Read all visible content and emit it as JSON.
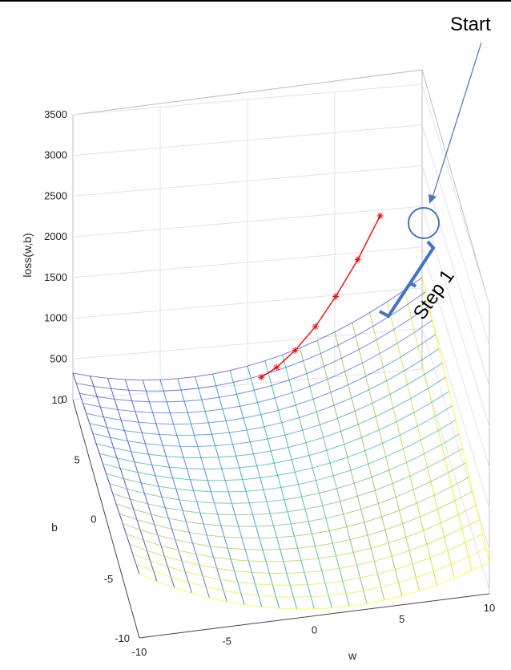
{
  "chart_data": {
    "type": "surface",
    "title": "",
    "xlabel": "w",
    "ylabel": "b",
    "zlabel": "loss(w,b)",
    "xlim": [
      -10,
      10
    ],
    "ylim": [
      -10,
      10
    ],
    "zlim": [
      0,
      3500
    ],
    "x_ticks": [
      "-10",
      "-5",
      "0",
      "5",
      "10"
    ],
    "y_ticks": [
      "-10",
      "-5",
      "0",
      "5",
      "10"
    ],
    "z_ticks": [
      "0",
      "500",
      "1000",
      "1500",
      "2000",
      "2500",
      "3000",
      "3500"
    ],
    "grid": true,
    "colormap": "parula",
    "descent_path": {
      "color": "#ff0000",
      "marker": "*",
      "w": [
        7.5,
        6.2,
        4.9,
        3.7,
        2.5,
        1.4,
        0.5
      ],
      "b": [
        9.5,
        9.4,
        9.2,
        9.0,
        8.8,
        8.6,
        8.5
      ],
      "loss": [
        2000,
        1500,
        1100,
        780,
        540,
        380,
        290
      ]
    },
    "annotations": {
      "start_label": "Start",
      "step_label": "Step 1",
      "arrow_color": "#4472c4",
      "bracket_color": "#4472c4"
    }
  }
}
